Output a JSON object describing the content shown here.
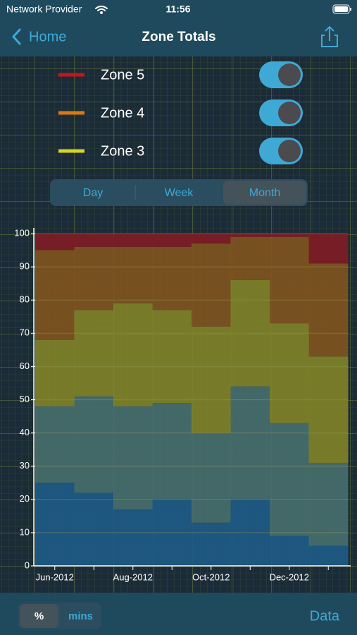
{
  "status_bar": {
    "carrier": "Network Provider",
    "time": "11:56"
  },
  "nav": {
    "back": "Home",
    "title": "Zone Totals"
  },
  "range_selector": {
    "options": [
      "Day",
      "Week",
      "Month"
    ],
    "selected": 2
  },
  "unit_selector": {
    "options": [
      "%",
      "mins"
    ],
    "selected": 0
  },
  "data_button": "Data",
  "chart_data": {
    "type": "stacked-step",
    "categories": [
      "Jun-2012",
      null,
      "Aug-2012",
      null,
      "Oct-2012",
      null,
      "Dec-2012",
      null
    ],
    "series": [
      {
        "color": "#1d5a86",
        "values": [
          25,
          22,
          17,
          20,
          13,
          20,
          9,
          6
        ]
      },
      {
        "color": "#466e6c",
        "values": [
          23,
          29,
          31,
          29,
          27,
          34,
          34,
          25
        ]
      },
      {
        "name": "Zone 3",
        "color": "#d6d81a",
        "fill": "#7f8228",
        "values": [
          20,
          26,
          31,
          28,
          32,
          32,
          30,
          32
        ]
      },
      {
        "name": "Zone 4",
        "color": "#d97a14",
        "fill": "#7f5420",
        "values": [
          27,
          19,
          17,
          19,
          25,
          13,
          26,
          28
        ]
      },
      {
        "name": "Zone 5",
        "color": "#c8151b",
        "fill": "#7e1c25",
        "values": [
          5,
          4,
          4,
          4,
          3,
          1,
          1,
          9
        ]
      }
    ],
    "ylim": [
      0,
      100
    ],
    "yticks": [
      0,
      10,
      20,
      30,
      40,
      50,
      60,
      70,
      80,
      90,
      100
    ],
    "grid": true
  }
}
